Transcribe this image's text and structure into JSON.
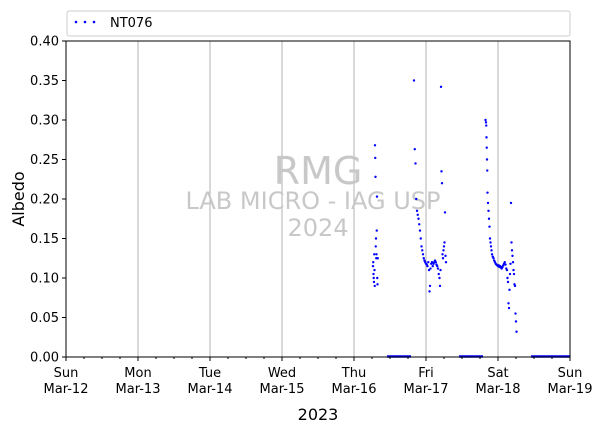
{
  "chart_data": {
    "type": "scatter",
    "ylabel": "Albedo",
    "xlabel": "2023",
    "ylim": [
      0,
      0.4
    ],
    "xlim": [
      "2023-03-12",
      "2023-03-19"
    ],
    "y_ticks": [
      "0.00",
      "0.05",
      "0.10",
      "0.15",
      "0.20",
      "0.25",
      "0.30",
      "0.35",
      "0.40"
    ],
    "x_ticks": [
      {
        "day": "Sun",
        "date": "Mar-12"
      },
      {
        "day": "Mon",
        "date": "Mar-13"
      },
      {
        "day": "Tue",
        "date": "Mar-14"
      },
      {
        "day": "Wed",
        "date": "Mar-15"
      },
      {
        "day": "Thu",
        "date": "Mar-16"
      },
      {
        "day": "Fri",
        "date": "Mar-17"
      },
      {
        "day": "Sat",
        "date": "Mar-18"
      },
      {
        "day": "Sun",
        "date": "Mar-19"
      }
    ],
    "grid": "vertical",
    "legend_position": "top",
    "watermark": {
      "line1": "RMG",
      "line2": "LAB MICRO - IAG USP",
      "line3": "2024"
    },
    "series": [
      {
        "name": "NT076",
        "color": "#0000ff",
        "points": [
          [
            "2023-03-16 06:20",
            0.115
          ],
          [
            "2023-03-16 06:25",
            0.12
          ],
          [
            "2023-03-16 06:30",
            0.105
          ],
          [
            "2023-03-16 06:35",
            0.1
          ],
          [
            "2023-03-16 06:40",
            0.095
          ],
          [
            "2023-03-16 06:45",
            0.13
          ],
          [
            "2023-03-16 06:50",
            0.11
          ],
          [
            "2023-03-16 06:55",
            0.09
          ],
          [
            "2023-03-16 07:00",
            0.268
          ],
          [
            "2023-03-16 07:05",
            0.252
          ],
          [
            "2023-03-16 07:10",
            0.228
          ],
          [
            "2023-03-16 07:15",
            0.14
          ],
          [
            "2023-03-16 07:20",
            0.15
          ],
          [
            "2023-03-16 07:25",
            0.125
          ],
          [
            "2023-03-16 07:30",
            0.13
          ],
          [
            "2023-03-16 07:35",
            0.16
          ],
          [
            "2023-03-16 07:40",
            0.203
          ],
          [
            "2023-03-16 07:45",
            0.1
          ],
          [
            "2023-03-16 07:50",
            0.092
          ],
          [
            "2023-03-16 07:55",
            0.125
          ],
          [
            "2023-03-16 20:00",
            0.35
          ],
          [
            "2023-03-16 20:15",
            0.263
          ],
          [
            "2023-03-16 20:30",
            0.245
          ],
          [
            "2023-03-16 20:45",
            0.2
          ],
          [
            "2023-03-16 21:00",
            0.185
          ],
          [
            "2023-03-16 21:15",
            0.18
          ],
          [
            "2023-03-16 21:30",
            0.175
          ],
          [
            "2023-03-16 21:45",
            0.168
          ],
          [
            "2023-03-16 22:00",
            0.16
          ],
          [
            "2023-03-16 22:15",
            0.15
          ],
          [
            "2023-03-16 22:30",
            0.14
          ],
          [
            "2023-03-16 22:45",
            0.135
          ],
          [
            "2023-03-16 23:00",
            0.13
          ],
          [
            "2023-03-16 23:15",
            0.125
          ],
          [
            "2023-03-16 23:30",
            0.122
          ],
          [
            "2023-03-16 23:45",
            0.12
          ],
          [
            "2023-03-17 00:00",
            0.118
          ],
          [
            "2023-03-17 00:15",
            0.117
          ],
          [
            "2023-03-17 00:30",
            0.115
          ],
          [
            "2023-03-17 00:45",
            0.12
          ],
          [
            "2023-03-17 01:00",
            0.11
          ],
          [
            "2023-03-17 01:10",
            0.083
          ],
          [
            "2023-03-17 01:20",
            0.09
          ],
          [
            "2023-03-17 01:30",
            0.112
          ],
          [
            "2023-03-17 01:45",
            0.118
          ],
          [
            "2023-03-17 02:00",
            0.12
          ],
          [
            "2023-03-17 02:15",
            0.115
          ],
          [
            "2023-03-17 02:30",
            0.118
          ],
          [
            "2023-03-17 02:45",
            0.12
          ],
          [
            "2023-03-17 03:00",
            0.122
          ],
          [
            "2023-03-17 03:15",
            0.12
          ],
          [
            "2023-03-17 03:30",
            0.117
          ],
          [
            "2023-03-17 03:45",
            0.115
          ],
          [
            "2023-03-17 04:00",
            0.112
          ],
          [
            "2023-03-17 04:15",
            0.105
          ],
          [
            "2023-03-17 04:30",
            0.1
          ],
          [
            "2023-03-17 04:40",
            0.09
          ],
          [
            "2023-03-17 04:50",
            0.11
          ],
          [
            "2023-03-17 05:00",
            0.342
          ],
          [
            "2023-03-17 05:10",
            0.235
          ],
          [
            "2023-03-17 05:20",
            0.22
          ],
          [
            "2023-03-17 05:30",
            0.13
          ],
          [
            "2023-03-17 05:40",
            0.125
          ],
          [
            "2023-03-17 05:50",
            0.135
          ],
          [
            "2023-03-17 06:00",
            0.14
          ],
          [
            "2023-03-17 06:10",
            0.145
          ],
          [
            "2023-03-17 06:20",
            0.183
          ],
          [
            "2023-03-17 06:30",
            0.128
          ],
          [
            "2023-03-17 06:40",
            0.12
          ],
          [
            "2023-03-17 19:50",
            0.3
          ],
          [
            "2023-03-17 20:00",
            0.297
          ],
          [
            "2023-03-17 20:05",
            0.293
          ],
          [
            "2023-03-17 20:10",
            0.278
          ],
          [
            "2023-03-17 20:15",
            0.265
          ],
          [
            "2023-03-17 20:20",
            0.25
          ],
          [
            "2023-03-17 20:25",
            0.236
          ],
          [
            "2023-03-17 20:30",
            0.208
          ],
          [
            "2023-03-17 20:40",
            0.195
          ],
          [
            "2023-03-17 20:50",
            0.185
          ],
          [
            "2023-03-17 21:00",
            0.175
          ],
          [
            "2023-03-17 21:10",
            0.165
          ],
          [
            "2023-03-17 21:20",
            0.15
          ],
          [
            "2023-03-17 21:30",
            0.145
          ],
          [
            "2023-03-17 21:40",
            0.14
          ],
          [
            "2023-03-17 21:50",
            0.135
          ],
          [
            "2023-03-17 22:00",
            0.13
          ],
          [
            "2023-03-17 22:15",
            0.127
          ],
          [
            "2023-03-17 22:30",
            0.125
          ],
          [
            "2023-03-17 22:45",
            0.122
          ],
          [
            "2023-03-17 23:00",
            0.12
          ],
          [
            "2023-03-17 23:15",
            0.118
          ],
          [
            "2023-03-17 23:30",
            0.117
          ],
          [
            "2023-03-17 23:45",
            0.116
          ],
          [
            "2023-03-18 00:00",
            0.115
          ],
          [
            "2023-03-18 00:15",
            0.116
          ],
          [
            "2023-03-18 00:30",
            0.114
          ],
          [
            "2023-03-18 00:45",
            0.115
          ],
          [
            "2023-03-18 01:00",
            0.113
          ],
          [
            "2023-03-18 01:15",
            0.112
          ],
          [
            "2023-03-18 01:30",
            0.114
          ],
          [
            "2023-03-18 01:45",
            0.116
          ],
          [
            "2023-03-18 02:00",
            0.118
          ],
          [
            "2023-03-18 02:15",
            0.12
          ],
          [
            "2023-03-18 02:30",
            0.117
          ],
          [
            "2023-03-18 02:45",
            0.112
          ],
          [
            "2023-03-18 03:00",
            0.11
          ],
          [
            "2023-03-18 03:10",
            0.1
          ],
          [
            "2023-03-18 03:20",
            0.095
          ],
          [
            "2023-03-18 03:30",
            0.068
          ],
          [
            "2023-03-18 03:40",
            0.062
          ],
          [
            "2023-03-18 03:50",
            0.085
          ],
          [
            "2023-03-18 04:00",
            0.105
          ],
          [
            "2023-03-18 04:10",
            0.118
          ],
          [
            "2023-03-18 04:20",
            0.195
          ],
          [
            "2023-03-18 04:30",
            0.145
          ],
          [
            "2023-03-18 04:40",
            0.135
          ],
          [
            "2023-03-18 04:50",
            0.128
          ],
          [
            "2023-03-18 05:00",
            0.12
          ],
          [
            "2023-03-18 05:10",
            0.11
          ],
          [
            "2023-03-18 05:20",
            0.105
          ],
          [
            "2023-03-18 05:30",
            0.092
          ],
          [
            "2023-03-18 05:40",
            0.09
          ],
          [
            "2023-03-18 05:50",
            0.055
          ],
          [
            "2023-03-18 06:00",
            0.045
          ],
          [
            "2023-03-18 06:10",
            0.032
          ]
        ],
        "zero_segments": [
          [
            "2023-03-16 11:00",
            "2023-03-16 19:00"
          ],
          [
            "2023-03-17 11:00",
            "2023-03-17 19:00"
          ],
          [
            "2023-03-18 11:00",
            "2023-03-18 23:59"
          ]
        ]
      }
    ]
  }
}
